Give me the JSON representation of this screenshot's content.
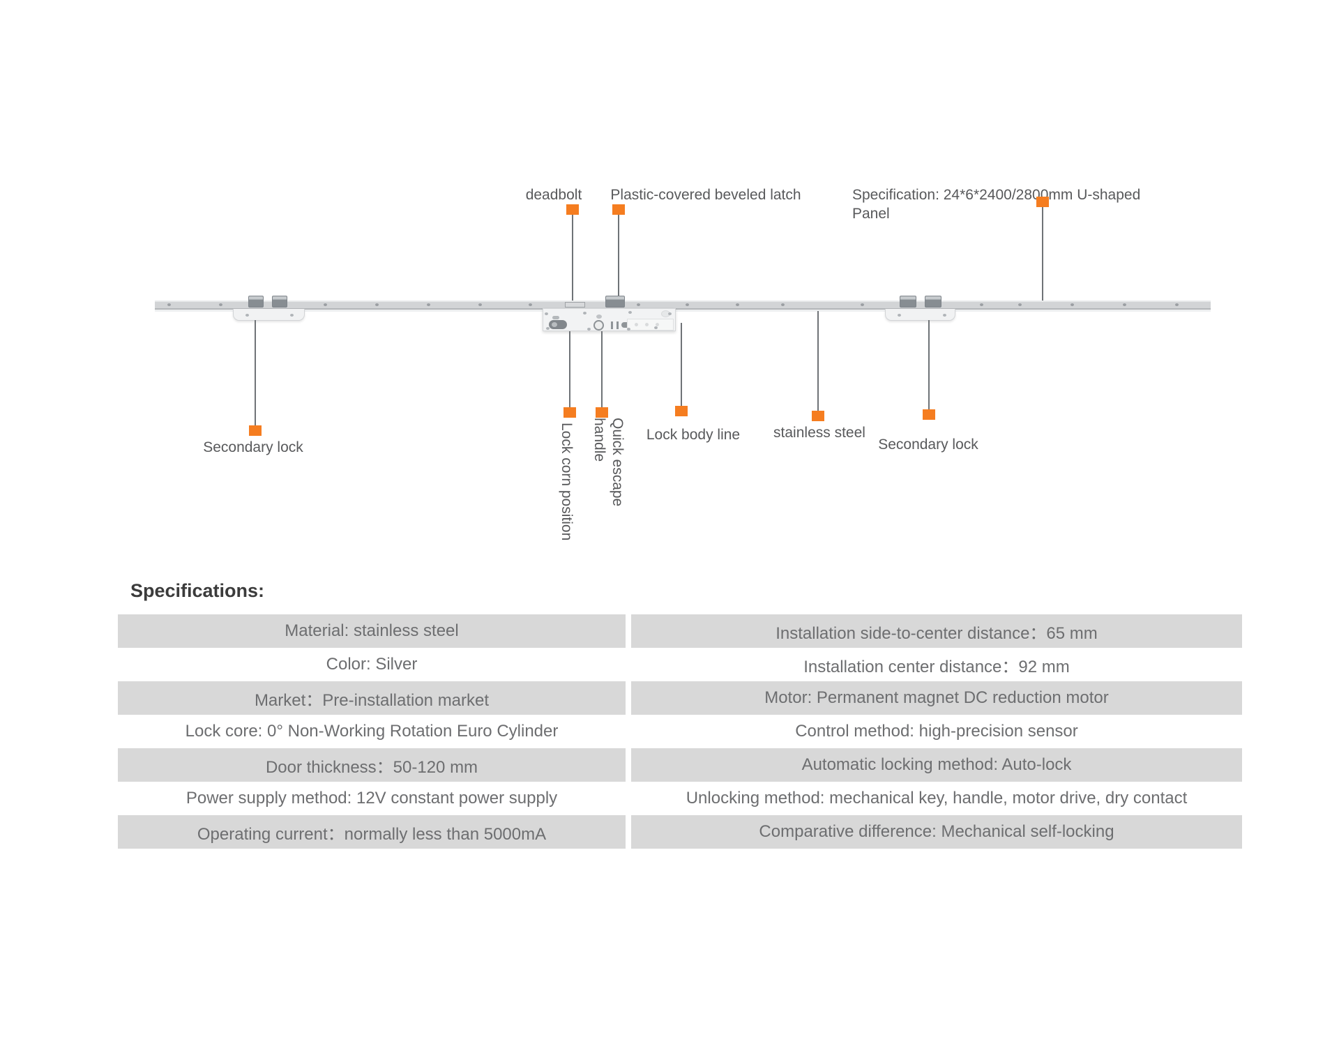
{
  "diagram": {
    "callouts": {
      "deadbolt": "deadbolt",
      "beveled_latch": "Plastic-covered beveled latch",
      "spec_panel": "Specification: 24*6*2400/2800mm  U-shaped\nPanel",
      "secondary_lock_left": "Secondary lock",
      "lock_corn_position": "Lock corn position",
      "quick_escape_handle": "Quick escape\nhandle",
      "lock_body_line": "Lock body line",
      "stainless_steel": "stainless steel",
      "secondary_lock_right": "Secondary lock"
    },
    "colors": {
      "marker": "#F57D20",
      "leader_line": "#6F7377"
    }
  },
  "specifications": {
    "heading": "Specifications:",
    "rows": [
      {
        "left": "Material: stainless steel",
        "right": "Installation side-to-center distance：65 mm"
      },
      {
        "left": "Color: Silver",
        "right": "Installation center distance：92 mm"
      },
      {
        "left": "Market：Pre-installation market",
        "right": "Motor: Permanent magnet DC reduction motor"
      },
      {
        "left": "Lock core: 0° Non-Working Rotation Euro Cylinder",
        "right": "Control method: high-precision sensor"
      },
      {
        "left": "Door thickness：50-120 mm",
        "right": "Automatic locking method: Auto-lock"
      },
      {
        "left": "Power supply method: 12V constant power supply",
        "right": "Unlocking method: mechanical key, handle, motor drive, dry contact"
      },
      {
        "left": "Operating current：normally less than 5000mA",
        "right": "Comparative difference: Mechanical self-locking"
      }
    ]
  }
}
